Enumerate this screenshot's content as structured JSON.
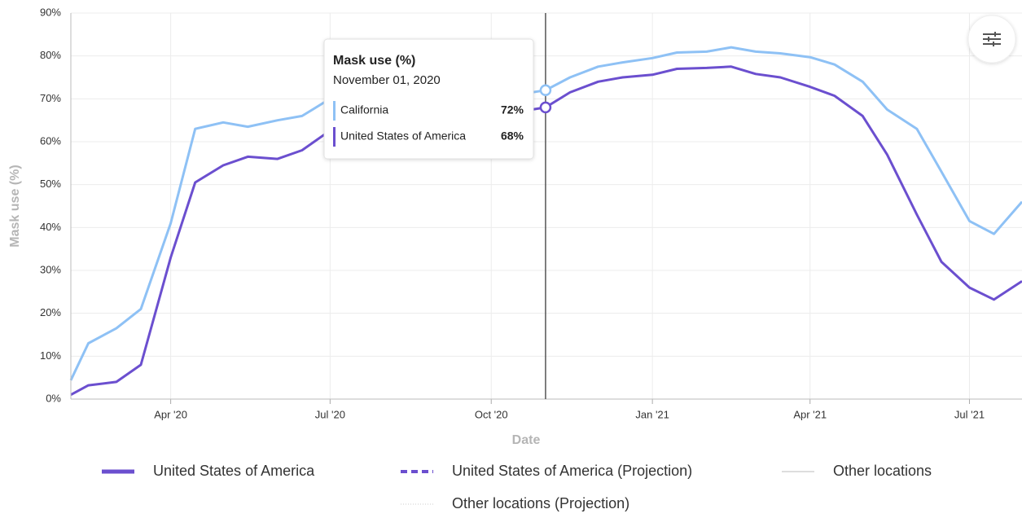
{
  "chart_data": {
    "type": "line",
    "y_label": "Mask use (%)",
    "x_label": "Date",
    "x": [
      "2020-02-04",
      "2020-02-14",
      "2020-03-01",
      "2020-03-15",
      "2020-04-01",
      "2020-04-15",
      "2020-05-01",
      "2020-05-15",
      "2020-06-01",
      "2020-06-15",
      "2020-07-01",
      "2020-08-01",
      "2020-09-01",
      "2020-10-01",
      "2020-11-01",
      "2020-11-15",
      "2020-12-01",
      "2020-12-15",
      "2021-01-01",
      "2021-01-15",
      "2021-02-01",
      "2021-02-15",
      "2021-03-01",
      "2021-03-15",
      "2021-04-01",
      "2021-04-15",
      "2021-05-01",
      "2021-05-15",
      "2021-06-01",
      "2021-06-15",
      "2021-07-01",
      "2021-07-15",
      "2021-07-31"
    ],
    "series": [
      {
        "name": "California",
        "color": "#8ec1f5",
        "values": [
          4.4,
          13,
          16.5,
          21,
          41,
          63,
          64.5,
          63.5,
          65,
          66,
          70,
          70,
          70,
          70,
          72,
          75,
          77.5,
          78.5,
          79.5,
          80.8,
          81,
          82,
          81,
          80.6,
          79.7,
          78,
          74,
          67.5,
          63,
          53,
          41.5,
          38.5,
          46
        ]
      },
      {
        "name": "United States of America",
        "color": "#6b4fcf",
        "values": [
          1,
          3.2,
          4,
          8,
          33,
          50.5,
          54.5,
          56.5,
          56,
          58,
          62.6,
          64,
          65,
          66,
          68,
          71.5,
          74,
          75,
          75.6,
          77,
          77.2,
          77.5,
          75.8,
          75,
          72.8,
          70.7,
          66,
          57,
          43,
          32,
          26,
          23.2,
          27.5
        ]
      }
    ],
    "xlim": [
      "2020-02-04",
      "2021-07-31"
    ],
    "xticks": [
      {
        "value": "2020-04-01",
        "label": "Apr '20"
      },
      {
        "value": "2020-07-01",
        "label": "Jul '20"
      },
      {
        "value": "2020-10-01",
        "label": "Oct '20"
      },
      {
        "value": "2021-01-01",
        "label": "Jan '21"
      },
      {
        "value": "2021-04-01",
        "label": "Apr '21"
      },
      {
        "value": "2021-07-01",
        "label": "Jul '21"
      }
    ],
    "ylim": [
      0,
      90
    ],
    "yticks": [
      {
        "value": 0,
        "label": "0%"
      },
      {
        "value": 10,
        "label": "10%"
      },
      {
        "value": 20,
        "label": "20%"
      },
      {
        "value": 30,
        "label": "30%"
      },
      {
        "value": 40,
        "label": "40%"
      },
      {
        "value": 50,
        "label": "50%"
      },
      {
        "value": 60,
        "label": "60%"
      },
      {
        "value": 70,
        "label": "70%"
      },
      {
        "value": 80,
        "label": "80%"
      },
      {
        "value": 90,
        "label": "90%"
      }
    ],
    "grid": true,
    "tooltip": {
      "x": "2020-11-01",
      "title": "Mask use (%)",
      "date_label": "November 01, 2020",
      "items": [
        {
          "value": 72,
          "label": "72%"
        },
        {
          "value": 68,
          "label": "68%"
        }
      ]
    },
    "legend": [
      {
        "label": "United States of America",
        "style": "solid",
        "color": "#6b4fcf"
      },
      {
        "label": "United States of America (Projection)",
        "style": "dashed",
        "color": "#6b4fcf"
      },
      {
        "label": "Other locations",
        "style": "thin",
        "color": "#bbbbbb"
      },
      {
        "label": "Other locations (Projection)",
        "style": "dotted",
        "color": "#cccccc"
      }
    ]
  }
}
